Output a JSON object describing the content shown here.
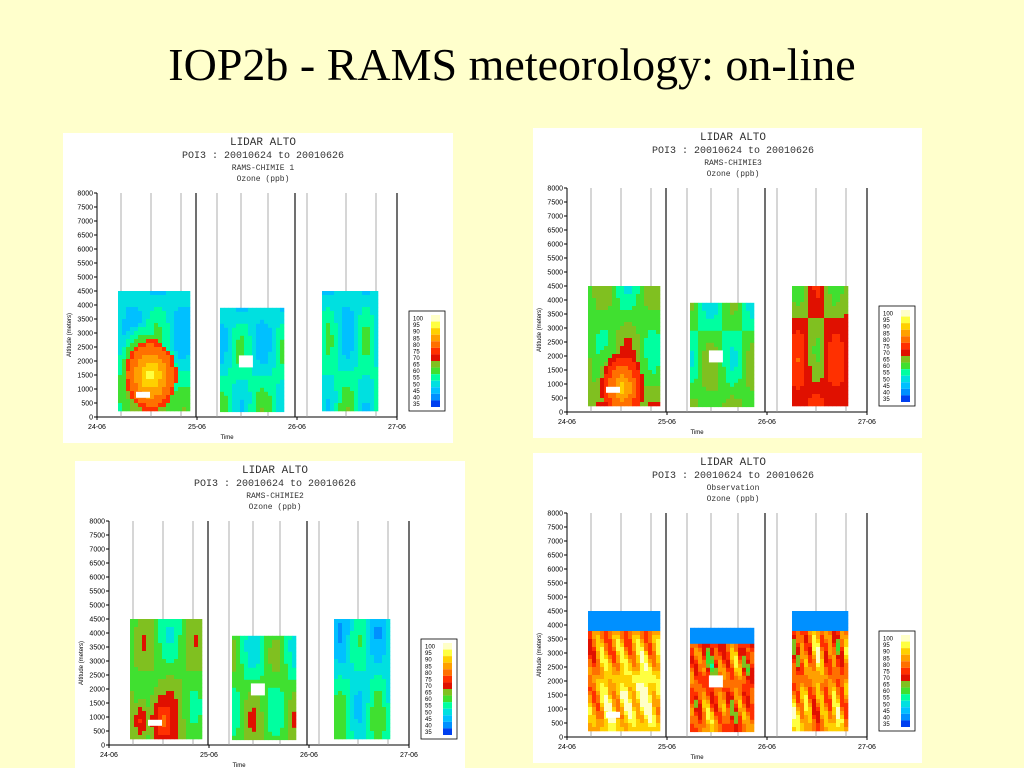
{
  "slide": {
    "title": "IOP2b - RAMS meteorology: on-line"
  },
  "colorbar": {
    "levels": [
      "100",
      "95",
      "90",
      "85",
      "80",
      "75",
      "70",
      "65",
      "60",
      "55",
      "50",
      "45",
      "40",
      "35"
    ],
    "colors": [
      "#ffffc8",
      "#ffff40",
      "#ffd000",
      "#ffa000",
      "#ff7000",
      "#ff3000",
      "#e01000",
      "#80c020",
      "#40e030",
      "#00ffa0",
      "#00e0e0",
      "#00c0ff",
      "#0090ff",
      "#0040f0"
    ]
  },
  "chart_data": [
    {
      "type": "heatmap",
      "title": "LIDAR ALTO",
      "subtitle": "POI3 : 20010624 to 20010626",
      "model": "RAMS-CHIMIE 1",
      "variable": "Ozone (ppb)",
      "xlabel": "Time",
      "ylabel": "Altitude (meters)",
      "x_ticks": [
        "24-06",
        "25-06",
        "26-06",
        "27-06"
      ],
      "y_ticks": [
        0,
        500,
        1000,
        1500,
        2000,
        2500,
        3000,
        3500,
        4000,
        4500,
        5000,
        5500,
        6000,
        6500,
        7000,
        7500,
        8000
      ],
      "ylim": [
        0,
        8000
      ],
      "colorbar_ticks": [
        "100",
        "95",
        "90",
        "85",
        "80",
        "75",
        "70",
        "65",
        "60",
        "55",
        "50",
        "45",
        "40",
        "35"
      ],
      "dominant_range_ppb": [
        45,
        65
      ],
      "max_ppb": 100
    },
    {
      "type": "heatmap",
      "title": "LIDAR ALTO",
      "subtitle": "POI3 : 20010624 to 20010626",
      "model": "RAMS-CHIMIE3",
      "variable": "Ozone (ppb)",
      "xlabel": "Time",
      "ylabel": "Altitude (meters)",
      "x_ticks": [
        "24-06",
        "25-06",
        "26-06",
        "27-06"
      ],
      "y_ticks": [
        0,
        500,
        1000,
        1500,
        2000,
        2500,
        3000,
        3500,
        4000,
        4500,
        5000,
        5500,
        6000,
        6500,
        7000,
        7500,
        8000
      ],
      "ylim": [
        0,
        8000
      ],
      "colorbar_ticks": [
        "100",
        "95",
        "90",
        "85",
        "80",
        "75",
        "70",
        "65",
        "60",
        "55",
        "50",
        "45",
        "40",
        "35"
      ],
      "dominant_range_ppb": [
        55,
        70
      ],
      "max_ppb": 100
    },
    {
      "type": "heatmap",
      "title": "LIDAR ALTO",
      "subtitle": "POI3 : 20010624 to 20010626",
      "model": "RAMS-CHIMIE2",
      "variable": "Ozone (ppb)",
      "xlabel": "Time",
      "ylabel": "Altitude (meters)",
      "x_ticks": [
        "24-06",
        "25-06",
        "26-06",
        "27-06"
      ],
      "y_ticks": [
        0,
        500,
        1000,
        1500,
        2000,
        2500,
        3000,
        3500,
        4000,
        4500,
        5000,
        5500,
        6000,
        6500,
        7000,
        7500,
        8000
      ],
      "ylim": [
        0,
        8000
      ],
      "colorbar_ticks": [
        "100",
        "95",
        "90",
        "85",
        "80",
        "75",
        "70",
        "65",
        "60",
        "55",
        "50",
        "45",
        "40",
        "35"
      ],
      "dominant_range_ppb": [
        50,
        65
      ],
      "max_ppb": 85
    },
    {
      "type": "heatmap",
      "title": "LIDAR ALTO",
      "subtitle": "POI3 : 20010624 to 20010626",
      "model": "Observation",
      "variable": "Ozone (ppb)",
      "xlabel": "Time",
      "ylabel": "Altitude (meters)",
      "x_ticks": [
        "24-06",
        "25-06",
        "26-06",
        "27-06"
      ],
      "y_ticks": [
        0,
        500,
        1000,
        1500,
        2000,
        2500,
        3000,
        3500,
        4000,
        4500,
        5000,
        5500,
        6000,
        6500,
        7000,
        7500,
        8000
      ],
      "ylim": [
        0,
        8000
      ],
      "colorbar_ticks": [
        "100",
        "95",
        "90",
        "85",
        "80",
        "75",
        "70",
        "65",
        "60",
        "55",
        "50",
        "45",
        "40",
        "35"
      ],
      "dominant_range_ppb": [
        55,
        90
      ],
      "max_ppb": 100
    }
  ]
}
